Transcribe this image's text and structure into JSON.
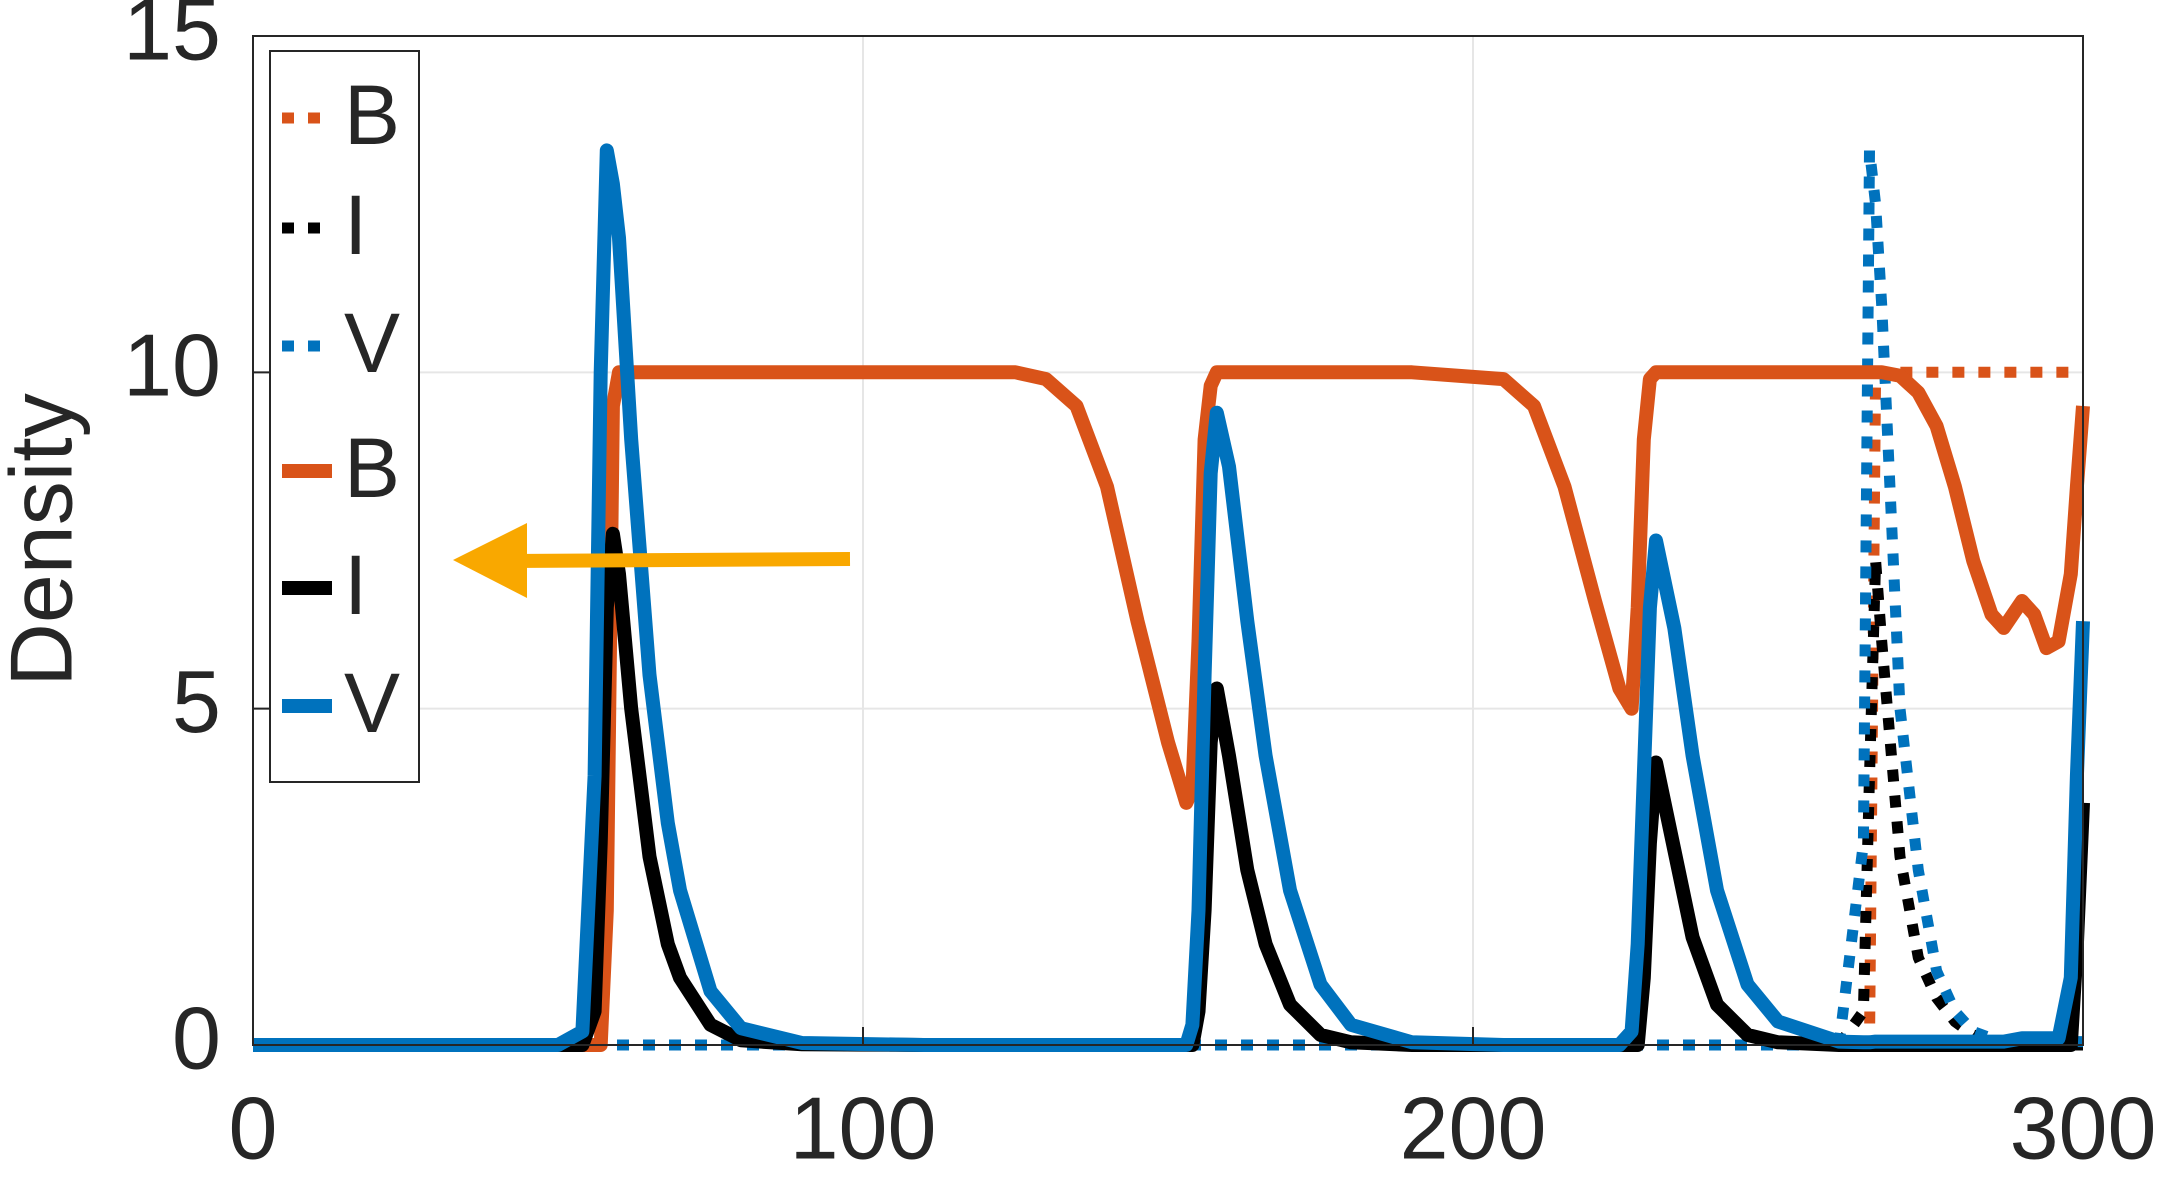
{
  "chart_data": {
    "type": "line",
    "ylabel": "Density",
    "x": [
      0,
      50,
      54,
      56,
      57,
      58,
      59,
      60,
      62,
      65,
      68,
      70,
      75,
      80,
      90,
      110,
      125,
      130,
      135,
      140,
      145,
      150,
      153,
      154,
      155,
      156,
      157,
      158,
      160,
      163,
      166,
      170,
      175,
      180,
      190,
      205,
      210,
      215,
      220,
      224,
      226,
      227,
      228,
      229,
      230,
      233,
      236,
      240,
      245,
      250,
      260,
      264,
      265,
      266,
      267,
      270,
      273,
      276,
      279,
      282,
      285,
      287,
      290,
      292,
      294,
      296,
      298,
      299,
      300
    ],
    "series": [
      {
        "name": "B",
        "color": "#d95319",
        "dash": true,
        "values": [
          0,
          0,
          0,
          0,
          0,
          0,
          0,
          0,
          0,
          0,
          0,
          0,
          0,
          0,
          0,
          0,
          0,
          0,
          0,
          0,
          0,
          0,
          0,
          0,
          0,
          0,
          0,
          0,
          0,
          0,
          0,
          0,
          0,
          0,
          0,
          0,
          0,
          0,
          0,
          0,
          0,
          0,
          0,
          0,
          0,
          0,
          0,
          0,
          0,
          0,
          0,
          0,
          0,
          10,
          10,
          10,
          10,
          10,
          10,
          10,
          10,
          10,
          10,
          10,
          10,
          10,
          10,
          10,
          10
        ]
      },
      {
        "name": "I",
        "color": "#000000",
        "dash": true,
        "values": [
          0,
          0,
          0,
          0,
          0,
          0,
          0,
          0,
          0,
          0,
          0,
          0,
          0,
          0,
          0,
          0,
          0,
          0,
          0,
          0,
          0,
          0,
          0,
          0,
          0,
          0,
          0,
          0,
          0,
          0,
          0,
          0,
          0,
          0,
          0,
          0,
          0,
          0,
          0,
          0,
          0,
          0,
          0,
          0,
          0,
          0,
          0,
          0,
          0,
          0,
          0,
          0.5,
          4,
          7.2,
          6,
          2.8,
          1.3,
          0.7,
          0.35,
          0.15,
          0.05,
          0,
          0,
          0,
          0,
          0,
          0,
          0,
          0
        ]
      },
      {
        "name": "V",
        "color": "#0072bd",
        "dash": true,
        "values": [
          0,
          0,
          0,
          0,
          0,
          0,
          0,
          0,
          0,
          0,
          0,
          0,
          0,
          0,
          0,
          0,
          0,
          0,
          0,
          0,
          0,
          0,
          0,
          0,
          0,
          0,
          0,
          0,
          0,
          0,
          0,
          0,
          0,
          0,
          0,
          0,
          0,
          0,
          0,
          0,
          0,
          0,
          0,
          0,
          0,
          0,
          0,
          0,
          0,
          0,
          0,
          3,
          13.3,
          12.5,
          11,
          5,
          2.6,
          1.1,
          0.5,
          0.2,
          0.1,
          0.05,
          0.05,
          0.05,
          0.05,
          0.05,
          0.05,
          0.05,
          0.05
        ]
      },
      {
        "name": "B",
        "color": "#d95319",
        "dash": false,
        "values": [
          0,
          0,
          0,
          0,
          0,
          2,
          9.5,
          10,
          10,
          10,
          10,
          10,
          10,
          10,
          10,
          10,
          10,
          9.9,
          9.5,
          8.3,
          6.3,
          4.5,
          3.6,
          3.8,
          6,
          9,
          9.8,
          10,
          10,
          10,
          10,
          10,
          10,
          10,
          10,
          9.9,
          9.5,
          8.3,
          6.6,
          5.3,
          5,
          6.5,
          9,
          9.9,
          10,
          10,
          10,
          10,
          10,
          10,
          10,
          10,
          10,
          10,
          10,
          9.95,
          9.7,
          9.2,
          8.3,
          7.2,
          6.4,
          6.2,
          6.6,
          6.4,
          5.9,
          6,
          7,
          8.3,
          9.5
        ]
      },
      {
        "name": "I",
        "color": "#000000",
        "dash": false,
        "values": [
          0,
          0,
          0,
          0.5,
          3,
          6.5,
          7.6,
          7,
          5,
          2.8,
          1.5,
          1,
          0.3,
          0.07,
          0.01,
          0,
          0,
          0,
          0,
          0,
          0,
          0,
          0,
          0,
          0.5,
          2,
          4.5,
          5.3,
          4.3,
          2.6,
          1.5,
          0.6,
          0.15,
          0.04,
          0,
          0,
          0,
          0,
          0,
          0,
          0,
          0,
          1,
          3,
          4.2,
          2.9,
          1.6,
          0.6,
          0.15,
          0.04,
          0,
          0,
          0,
          0,
          0,
          0,
          0,
          0,
          0,
          0,
          0,
          0,
          0,
          0,
          0,
          0,
          0,
          1.5,
          3.6
        ]
      },
      {
        "name": "V",
        "color": "#0072bd",
        "dash": false,
        "values": [
          0,
          0,
          0.2,
          4,
          10,
          13.3,
          12.8,
          12,
          9,
          5.5,
          3.3,
          2.3,
          0.8,
          0.25,
          0.03,
          0,
          0,
          0,
          0,
          0,
          0,
          0,
          0,
          0.3,
          2,
          5.5,
          8.5,
          9.4,
          8.6,
          6.3,
          4.3,
          2.3,
          0.9,
          0.3,
          0.04,
          0,
          0,
          0,
          0,
          0,
          0.2,
          1.5,
          4,
          6.5,
          7.5,
          6.2,
          4.3,
          2.3,
          0.9,
          0.35,
          0.05,
          0.04,
          0.04,
          0.05,
          0.05,
          0.05,
          0.05,
          0.05,
          0.05,
          0.05,
          0.05,
          0.05,
          0.1,
          0.1,
          0.1,
          0.1,
          1,
          4,
          6.3
        ]
      }
    ],
    "xlim": [
      0,
      300
    ],
    "xticks": [
      0,
      100,
      200,
      300
    ],
    "ylim": [
      0,
      15
    ],
    "yticks": [
      0,
      5,
      10,
      15
    ],
    "grid": true,
    "legend": "upper left"
  }
}
